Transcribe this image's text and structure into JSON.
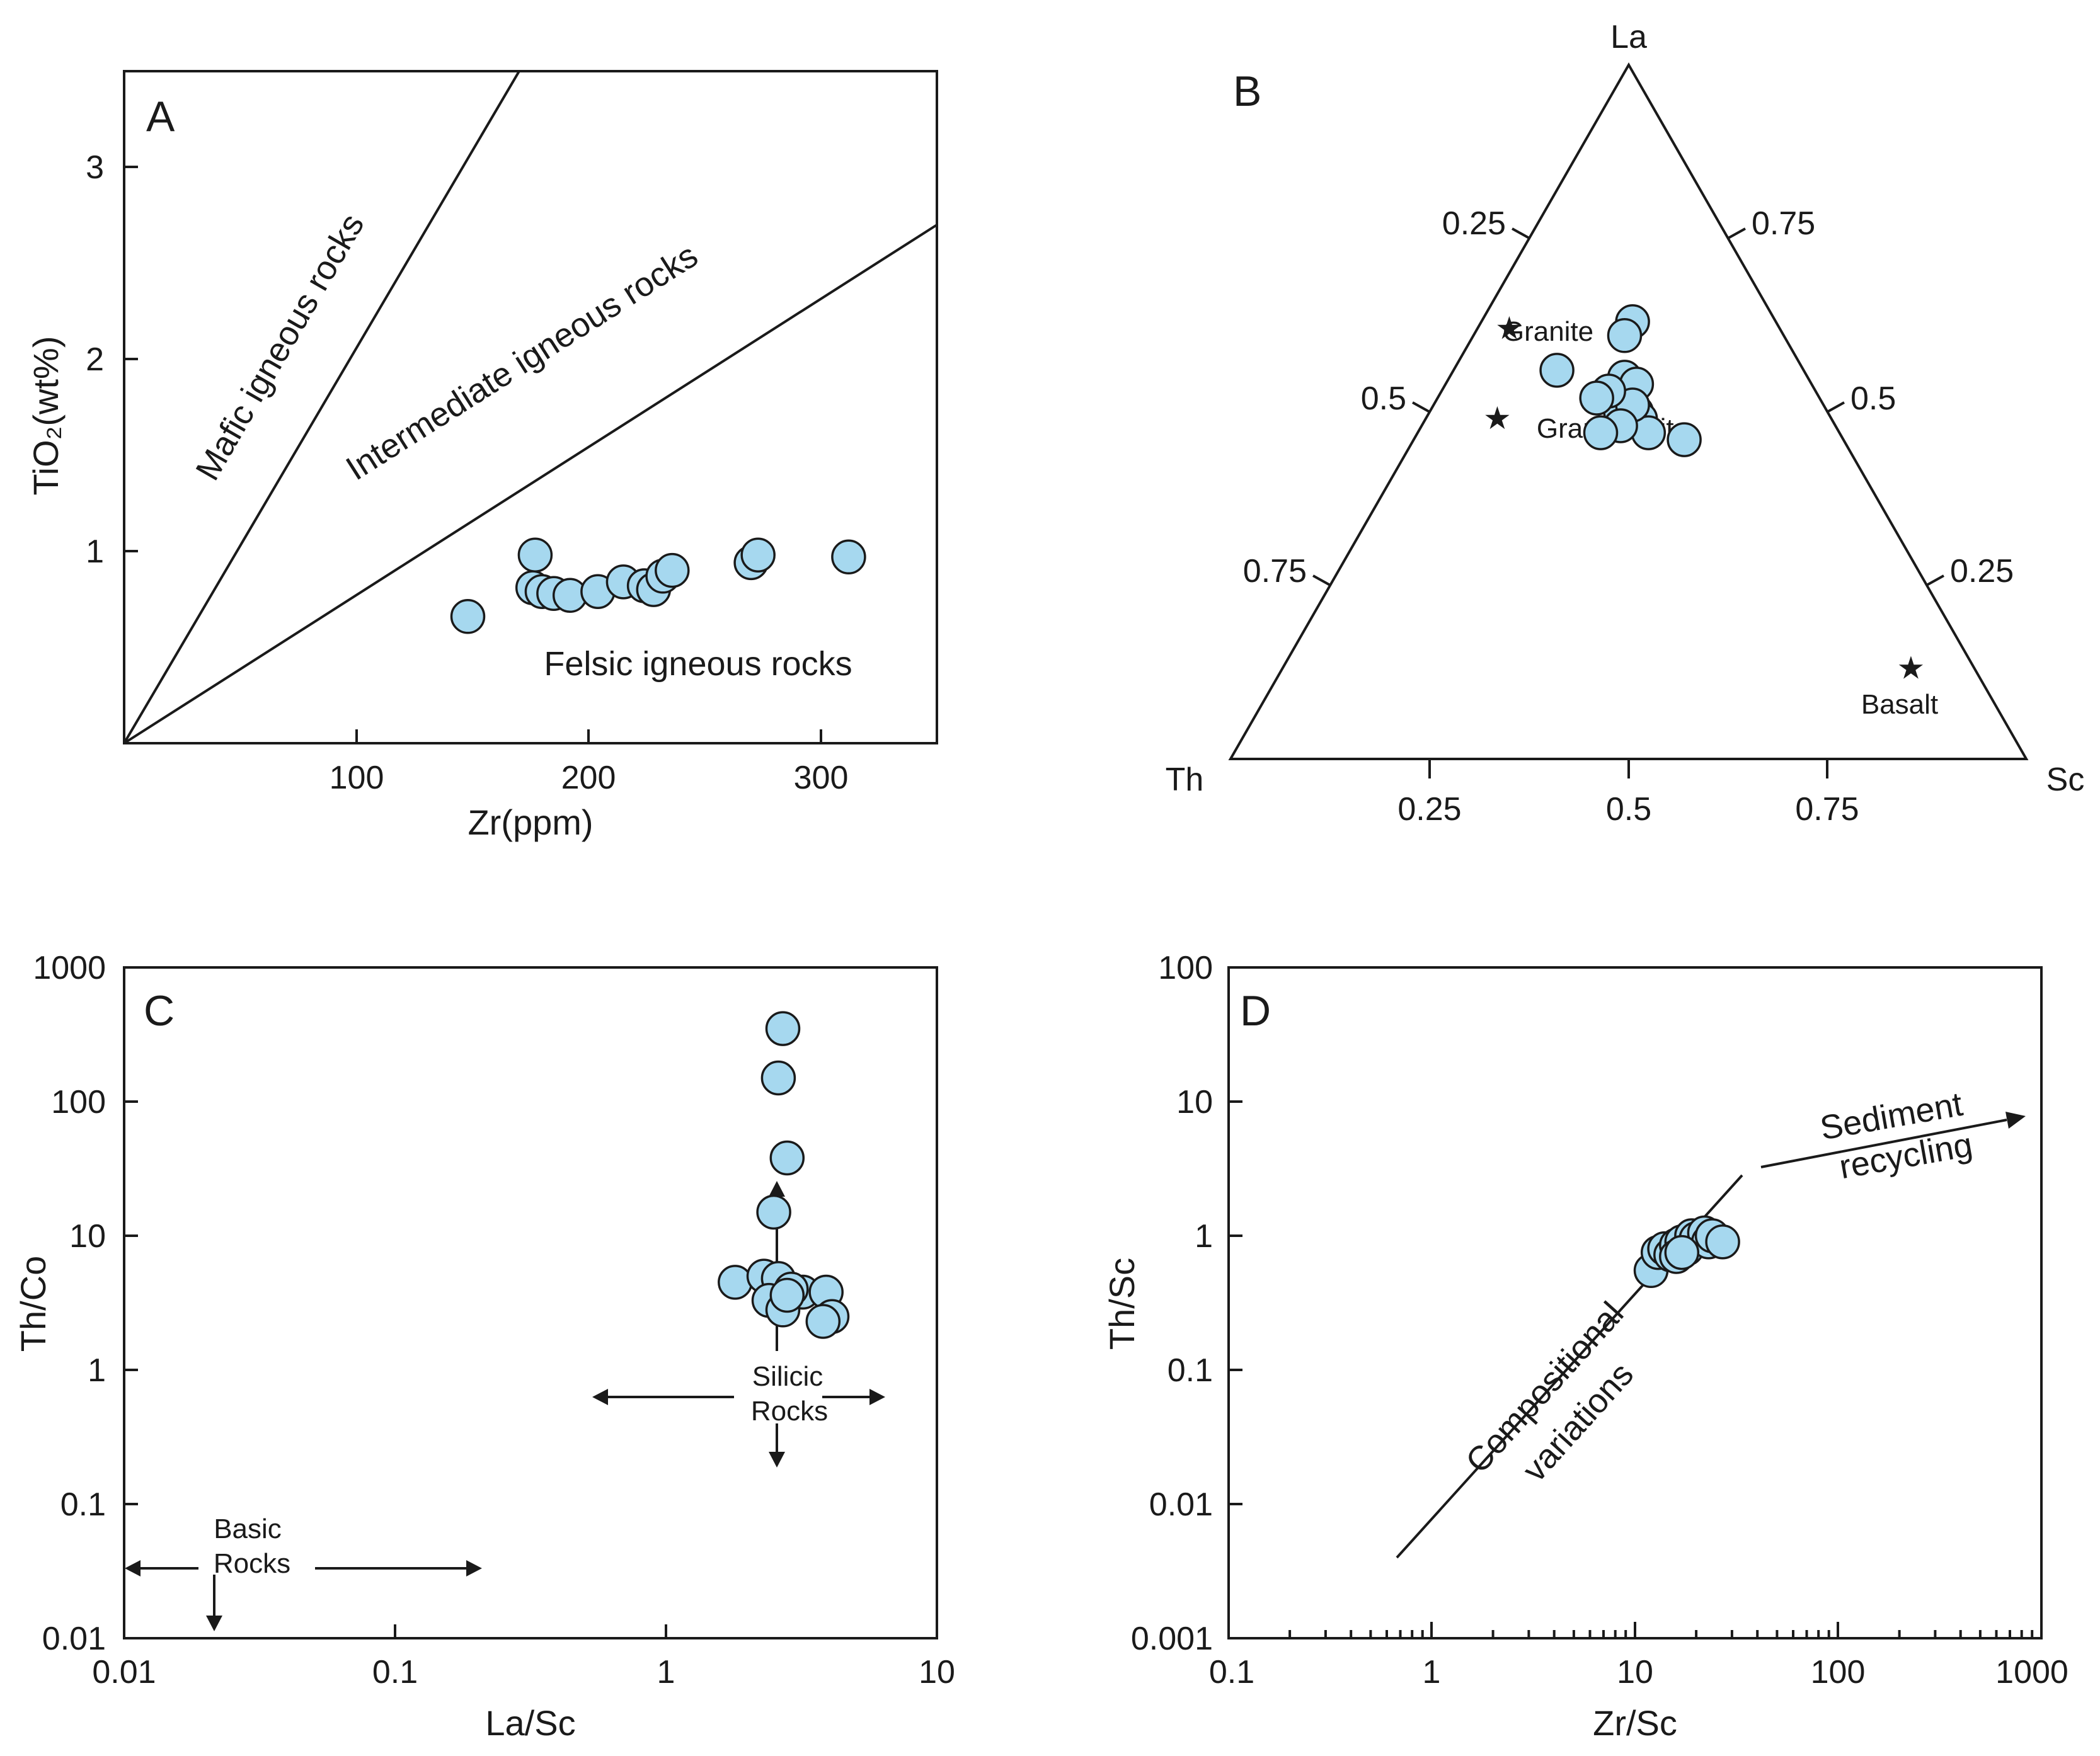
{
  "colors": {
    "marker_fill": "#a6d8ef",
    "line": "#1a1a1a"
  },
  "chart_data": [
    {
      "panel": "A",
      "type": "scatter",
      "xlabel": "Zr(ppm)",
      "ylabel": "TiO₂(wt%)",
      "xlim": [
        0,
        350
      ],
      "ylim": [
        0,
        3.5
      ],
      "xticks": [
        "100",
        "200",
        "300"
      ],
      "yticks": [
        "1",
        "2",
        "3"
      ],
      "regions": [
        "Mafic igneous rocks",
        "Intermediate igneous rocks",
        "Felsic igneous rocks"
      ],
      "lines": [
        [
          [
            0,
            0
          ],
          [
            170,
            3.5
          ]
        ],
        [
          [
            0,
            0
          ],
          [
            350,
            2.7
          ]
        ]
      ],
      "points": [
        [
          148,
          0.66
        ],
        [
          177,
          0.98
        ],
        [
          176,
          0.81
        ],
        [
          180,
          0.79
        ],
        [
          185,
          0.78
        ],
        [
          192,
          0.77
        ],
        [
          204,
          0.79
        ],
        [
          215,
          0.84
        ],
        [
          224,
          0.82
        ],
        [
          228,
          0.8
        ],
        [
          232,
          0.87
        ],
        [
          236,
          0.9
        ],
        [
          270,
          0.94
        ],
        [
          273,
          0.98
        ],
        [
          312,
          0.97
        ]
      ]
    },
    {
      "panel": "B",
      "type": "scatter",
      "subtype": "ternary",
      "vertices": [
        "La",
        "Th",
        "Sc"
      ],
      "ticks": [
        "0.25",
        "0.5",
        "0.75"
      ],
      "references": [
        {
          "name": "Granite",
          "La": 0.62,
          "Th": 0.34,
          "Sc": 0.04
        },
        {
          "name": "Granodiorite",
          "La": 0.49,
          "Th": 0.42,
          "Sc": 0.09
        },
        {
          "name": "Basalt",
          "La": 0.13,
          "Th": 0.08,
          "Sc": 0.79
        }
      ],
      "points": [
        [
          0.56,
          0.31,
          0.13
        ],
        [
          0.63,
          0.18,
          0.19
        ],
        [
          0.61,
          0.2,
          0.19
        ],
        [
          0.55,
          0.23,
          0.22
        ],
        [
          0.54,
          0.22,
          0.24
        ],
        [
          0.5,
          0.26,
          0.24
        ],
        [
          0.5,
          0.24,
          0.26
        ],
        [
          0.49,
          0.24,
          0.27
        ],
        [
          0.47,
          0.24,
          0.29
        ],
        [
          0.46,
          0.2,
          0.34
        ],
        [
          0.51,
          0.24,
          0.25
        ],
        [
          0.48,
          0.27,
          0.25
        ],
        [
          0.47,
          0.3,
          0.23
        ],
        [
          0.53,
          0.26,
          0.21
        ],
        [
          0.52,
          0.28,
          0.2
        ]
      ]
    },
    {
      "panel": "C",
      "type": "scatter",
      "xlabel": "La/Sc",
      "ylabel": "Th/Co",
      "xscale": "log",
      "yscale": "log",
      "xlim": [
        0.01,
        10
      ],
      "ylim": [
        0.01,
        1000
      ],
      "xticks": [
        "0.01",
        "0.1",
        "1",
        "10"
      ],
      "yticks": [
        "0.01",
        "0.1",
        "1",
        "10",
        "100",
        "1000"
      ],
      "fields": [
        {
          "label_lines": [
            "Silicic",
            "Rocks"
          ]
        },
        {
          "label_lines": [
            "Basic",
            "Rocks"
          ]
        }
      ],
      "points": [
        [
          2.7,
          350
        ],
        [
          2.6,
          150
        ],
        [
          2.8,
          38
        ],
        [
          2.5,
          15
        ],
        [
          1.8,
          4.5
        ],
        [
          2.3,
          5
        ],
        [
          2.6,
          4.8
        ],
        [
          2.4,
          3.3
        ],
        [
          2.7,
          2.8
        ],
        [
          3.2,
          3.8
        ],
        [
          2.9,
          4
        ],
        [
          3.9,
          3.8
        ],
        [
          4.1,
          2.5
        ],
        [
          3.8,
          2.3
        ],
        [
          2.8,
          3.6
        ]
      ]
    },
    {
      "panel": "D",
      "type": "scatter",
      "xlabel": "Zr/Sc",
      "ylabel": "Th/Sc",
      "xscale": "log",
      "yscale": "log",
      "xlim": [
        0.1,
        1000
      ],
      "ylim": [
        0.001,
        100
      ],
      "xticks": [
        "0.1",
        "1",
        "10",
        "100",
        "1000"
      ],
      "yticks": [
        "0.001",
        "0.01",
        "0.1",
        "1",
        "10",
        "100"
      ],
      "trend_labels": [
        "Compositional",
        "variations",
        "Sediment",
        "recycling"
      ],
      "points": [
        [
          12,
          0.55
        ],
        [
          13,
          0.75
        ],
        [
          14,
          0.8
        ],
        [
          15,
          0.72
        ],
        [
          16,
          0.85
        ],
        [
          17,
          0.9
        ],
        [
          18,
          0.8
        ],
        [
          19,
          1.0
        ],
        [
          20,
          0.95
        ],
        [
          22,
          1.05
        ],
        [
          23,
          0.9
        ],
        [
          24,
          1.0
        ],
        [
          27,
          0.9
        ],
        [
          16,
          0.7
        ],
        [
          17,
          0.75
        ]
      ]
    }
  ]
}
